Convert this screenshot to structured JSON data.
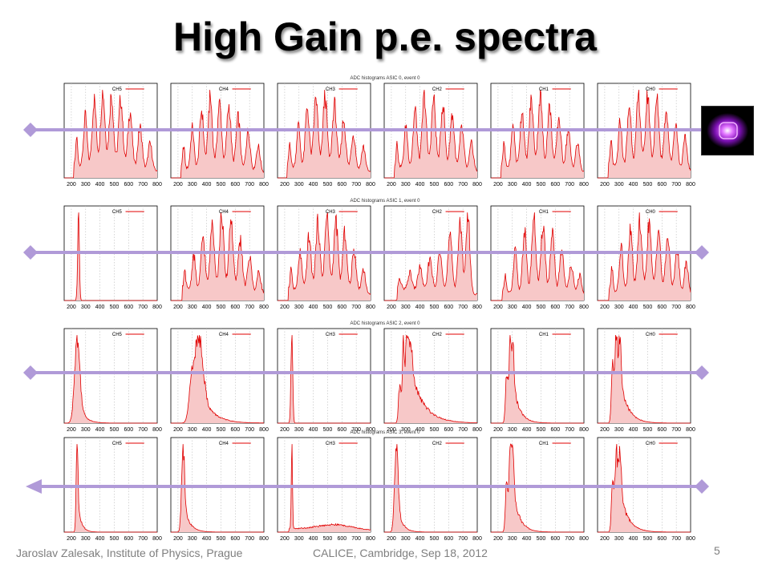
{
  "slide": {
    "title": "High Gain p.e. spectra",
    "footer_left": "Jaroslav Zalesak, Institute of Physics, Prague",
    "footer_center": "CALICE, Cambridge, Sep 18, 2012",
    "page_number": "5"
  },
  "colors": {
    "series": "#e00000",
    "fill": "#f7c8c8",
    "arrow": "#b09ad8",
    "grid": "#bbbbbb"
  },
  "led_icon": "led-glowing-violet-icon",
  "chart_data": [
    {
      "type": "area",
      "title": "ADC histograms ASIC 0, event 0",
      "xlim": [
        150,
        800
      ],
      "xticks": [
        200,
        300,
        400,
        500,
        600,
        700,
        800
      ],
      "arrow": "right",
      "panels": [
        {
          "name": "CH5",
          "peaks": [
            [
              238,
              0.3,
              7
            ],
            [
              298,
              0.55,
              12
            ],
            [
              360,
              0.75,
              14
            ],
            [
              420,
              0.85,
              15
            ],
            [
              480,
              0.82,
              15
            ],
            [
              545,
              0.78,
              15
            ],
            [
              610,
              0.65,
              15
            ],
            [
              680,
              0.48,
              15
            ],
            [
              750,
              0.3,
              14
            ]
          ],
          "base": 0.15
        },
        {
          "name": "CH4",
          "peaks": [
            [
              240,
              0.28,
              7
            ],
            [
              300,
              0.5,
              12
            ],
            [
              365,
              0.72,
              14
            ],
            [
              425,
              0.88,
              15
            ],
            [
              490,
              0.82,
              15
            ],
            [
              555,
              0.8,
              15
            ],
            [
              620,
              0.66,
              15
            ],
            [
              690,
              0.5,
              15
            ],
            [
              760,
              0.32,
              14
            ]
          ],
          "base": 0.12
        },
        {
          "name": "CH3",
          "peaks": [
            [
              236,
              0.3,
              7
            ],
            [
              296,
              0.52,
              12
            ],
            [
              358,
              0.74,
              14
            ],
            [
              418,
              0.86,
              15
            ],
            [
              482,
              0.9,
              15
            ],
            [
              548,
              0.8,
              15
            ],
            [
              612,
              0.62,
              15
            ],
            [
              680,
              0.45,
              15
            ],
            [
              750,
              0.3,
              14
            ]
          ],
          "base": 0.14
        },
        {
          "name": "CH2",
          "peaks": [
            [
              240,
              0.28,
              7
            ],
            [
              302,
              0.5,
              12
            ],
            [
              366,
              0.7,
              14
            ],
            [
              430,
              0.88,
              15
            ],
            [
              495,
              0.85,
              15
            ],
            [
              560,
              0.8,
              15
            ],
            [
              625,
              0.68,
              15
            ],
            [
              692,
              0.52,
              15
            ],
            [
              760,
              0.34,
              14
            ]
          ],
          "base": 0.14
        },
        {
          "name": "CH1",
          "peaks": [
            [
              242,
              0.3,
              7
            ],
            [
              305,
              0.55,
              12
            ],
            [
              368,
              0.75,
              14
            ],
            [
              432,
              0.88,
              15
            ],
            [
              495,
              0.95,
              15
            ],
            [
              560,
              0.82,
              15
            ],
            [
              625,
              0.68,
              15
            ],
            [
              690,
              0.52,
              15
            ],
            [
              755,
              0.36,
              14
            ]
          ],
          "base": 0.15
        },
        {
          "name": "CH0",
          "peaks": [
            [
              245,
              0.3,
              7
            ],
            [
              308,
              0.55,
              12
            ],
            [
              372,
              0.75,
              14
            ],
            [
              436,
              0.88,
              15
            ],
            [
              500,
              0.9,
              15
            ],
            [
              565,
              0.86,
              15
            ],
            [
              630,
              0.75,
              15
            ],
            [
              695,
              0.58,
              15
            ],
            [
              762,
              0.4,
              14
            ]
          ],
          "base": 0.15
        }
      ]
    },
    {
      "type": "area",
      "title": "ADC histograms ASIC 1, event 0",
      "xlim": [
        150,
        800
      ],
      "xticks": [
        200,
        300,
        400,
        500,
        600,
        700,
        800
      ],
      "arrow": "both",
      "panels": [
        {
          "name": "CH5",
          "peaks": [
            [
              250,
              1.0,
              6
            ]
          ],
          "base": 0
        },
        {
          "name": "CH4",
          "peaks": [
            [
              248,
              0.2,
              7
            ],
            [
              310,
              0.4,
              12
            ],
            [
              375,
              0.62,
              14
            ],
            [
              440,
              0.8,
              15
            ],
            [
              505,
              0.88,
              15
            ],
            [
              570,
              0.85,
              15
            ],
            [
              635,
              0.62,
              15
            ],
            [
              700,
              0.42,
              15
            ],
            [
              765,
              0.25,
              14
            ]
          ],
          "base": 0.14
        },
        {
          "name": "CH3",
          "peaks": [
            [
              245,
              0.25,
              7
            ],
            [
              308,
              0.45,
              12
            ],
            [
              370,
              0.65,
              14
            ],
            [
              432,
              0.82,
              15
            ],
            [
              495,
              0.9,
              15
            ],
            [
              558,
              0.85,
              15
            ],
            [
              620,
              0.72,
              15
            ],
            [
              685,
              0.52,
              15
            ],
            [
              750,
              0.3,
              14
            ]
          ],
          "base": 0.14
        },
        {
          "name": "CH2",
          "peaks": [
            [
              260,
              0.1,
              10
            ],
            [
              330,
              0.18,
              14
            ],
            [
              400,
              0.25,
              15
            ],
            [
              470,
              0.35,
              15
            ],
            [
              540,
              0.45,
              15
            ],
            [
              610,
              0.58,
              15
            ],
            [
              680,
              0.72,
              15
            ],
            [
              735,
              0.8,
              14
            ]
          ],
          "base": 0.12
        },
        {
          "name": "CH1",
          "peaks": [
            [
              250,
              0.2,
              8
            ],
            [
              320,
              0.5,
              12
            ],
            [
              385,
              0.75,
              14
            ],
            [
              450,
              0.92,
              15
            ],
            [
              515,
              0.85,
              15
            ],
            [
              580,
              0.72,
              15
            ],
            [
              645,
              0.55,
              15
            ],
            [
              710,
              0.38,
              15
            ],
            [
              770,
              0.25,
              14
            ]
          ],
          "base": 0.1
        },
        {
          "name": "CH0",
          "peaks": [
            [
              250,
              0.3,
              7
            ],
            [
              315,
              0.55,
              12
            ],
            [
              380,
              0.75,
              14
            ],
            [
              445,
              0.88,
              15
            ],
            [
              510,
              0.85,
              15
            ],
            [
              575,
              0.8,
              15
            ],
            [
              640,
              0.7,
              15
            ],
            [
              705,
              0.55,
              15
            ],
            [
              770,
              0.4,
              14
            ]
          ],
          "base": 0.12
        }
      ]
    },
    {
      "type": "area",
      "title": "ADC histograms ASIC 2, event 0",
      "xlim": [
        150,
        800
      ],
      "xticks": [
        200,
        300,
        400,
        500,
        600,
        700,
        800
      ],
      "arrow": "both",
      "panels": [
        {
          "name": "CH5",
          "peaks": [
            [
              240,
              1.0,
              18
            ]
          ],
          "tail": 40,
          "base": 0
        },
        {
          "name": "CH4",
          "peaks": [
            [
              300,
              0.6,
              20
            ],
            [
              350,
              0.95,
              25
            ]
          ],
          "tail": 80,
          "base": 0
        },
        {
          "name": "CH3",
          "peaks": [
            [
              250,
              1.0,
              6
            ]
          ],
          "base": 0
        },
        {
          "name": "CH2",
          "peaks": [
            [
              258,
              0.5,
              8
            ],
            [
              285,
              0.9,
              8
            ],
            [
              310,
              0.8,
              8
            ],
            [
              335,
              0.6,
              10
            ]
          ],
          "tail": 90,
          "base": 0
        },
        {
          "name": "CH1",
          "peaks": [
            [
              260,
              0.6,
              8
            ],
            [
              285,
              0.85,
              8
            ],
            [
              305,
              0.65,
              8
            ]
          ],
          "tail": 45,
          "base": 0
        },
        {
          "name": "CH0",
          "peaks": [
            [
              255,
              0.75,
              8
            ],
            [
              280,
              0.9,
              8
            ],
            [
              305,
              0.75,
              10
            ]
          ],
          "tail": 55,
          "base": 0
        }
      ]
    },
    {
      "type": "area",
      "title": "ADC histograms ASIC 3, event 0",
      "xlim": [
        150,
        800
      ],
      "xticks": [
        200,
        300,
        400,
        500,
        600,
        700,
        800
      ],
      "arrow": "left",
      "panels": [
        {
          "name": "CH5",
          "peaks": [
            [
              240,
              1.0,
              6
            ]
          ],
          "tail": 25,
          "base": 0
        },
        {
          "name": "CH4",
          "peaks": [
            [
              235,
              0.85,
              10
            ]
          ],
          "tail": 40,
          "base": 0
        },
        {
          "name": "CH3",
          "peaks": [
            [
              250,
              1.0,
              4
            ],
            [
              550,
              0.06,
              120
            ]
          ],
          "base": 0.04
        },
        {
          "name": "CH2",
          "peaks": [
            [
              235,
              0.95,
              12
            ]
          ],
          "tail": 35,
          "base": 0
        },
        {
          "name": "CH1",
          "peaks": [
            [
              260,
              0.6,
              8
            ],
            [
              285,
              0.85,
              8
            ],
            [
              305,
              0.6,
              8
            ]
          ],
          "tail": 45,
          "base": 0
        },
        {
          "name": "CH0",
          "peaks": [
            [
              255,
              0.6,
              8
            ],
            [
              280,
              0.85,
              8
            ],
            [
              305,
              0.7,
              10
            ]
          ],
          "tail": 55,
          "base": 0
        }
      ]
    }
  ]
}
